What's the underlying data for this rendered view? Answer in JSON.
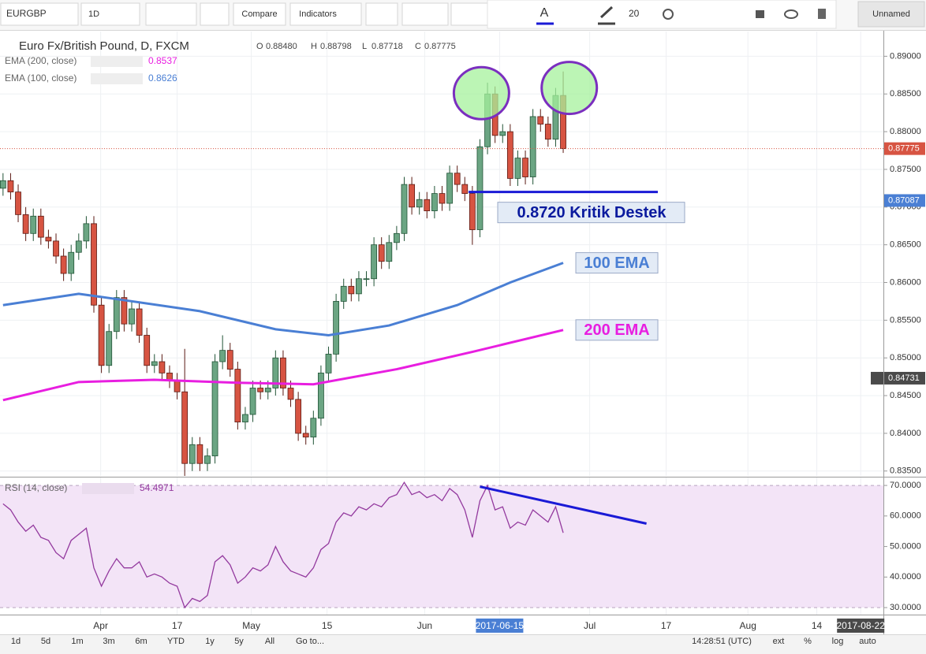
{
  "toolbar": {
    "symbol": "EURGBP",
    "interval": "1D",
    "compare": "Compare",
    "indicators": "Indicators",
    "font_size": "20",
    "layout": "Unnamed"
  },
  "legend": {
    "ohlc": [
      {
        "key": "O",
        "value": "0.88480"
      },
      {
        "key": "H",
        "value": "0.88798"
      },
      {
        "key": "L",
        "value": "0.87718"
      },
      {
        "key": "C",
        "value": "0.87775"
      }
    ]
  },
  "chart_data": [
    {
      "type": "candlestick",
      "title": "Euro Fx/British Pound, D, FXCM",
      "up_color": "#6ba583",
      "down_color": "#d75442",
      "grid": true,
      "xlim": [
        -0.4,
        116.3
      ],
      "ylim": [
        0.83435,
        0.89328
      ],
      "yticks": [
        {
          "value": 0.835,
          "label": "0.83500"
        },
        {
          "value": 0.84,
          "label": "0.84000"
        },
        {
          "value": 0.845,
          "label": "0.84500"
        },
        {
          "value": 0.85,
          "label": "0.85000"
        },
        {
          "value": 0.855,
          "label": "0.85500"
        },
        {
          "value": 0.86,
          "label": "0.86000"
        },
        {
          "value": 0.865,
          "label": "0.86500"
        },
        {
          "value": 0.87,
          "label": "0.87000"
        },
        {
          "value": 0.875,
          "label": "0.87500"
        },
        {
          "value": 0.88,
          "label": "0.88000"
        },
        {
          "value": 0.885,
          "label": "0.88500"
        },
        {
          "value": 0.89,
          "label": "0.89000"
        }
      ],
      "open": [
        0.8725,
        0.8735,
        0.872,
        0.869,
        0.8665,
        0.8688,
        0.866,
        0.8655,
        0.8635,
        0.8612,
        0.864,
        0.8655,
        0.8678,
        0.857,
        0.849,
        0.8535,
        0.858,
        0.8545,
        0.8565,
        0.853,
        0.849,
        0.8495,
        0.848,
        0.847,
        0.8455,
        0.836,
        0.8385,
        0.836,
        0.837,
        0.8495,
        0.851,
        0.8485,
        0.8415,
        0.8425,
        0.846,
        0.8455,
        0.846,
        0.85,
        0.846,
        0.8445,
        0.84,
        0.8395,
        0.842,
        0.848,
        0.8505,
        0.8575,
        0.8595,
        0.8585,
        0.8605,
        0.8605,
        0.865,
        0.8628,
        0.8653,
        0.8665,
        0.873,
        0.87,
        0.871,
        0.8695,
        0.8718,
        0.8705,
        0.8745,
        0.873,
        0.8718,
        0.867,
        0.878,
        0.885,
        0.8795,
        0.88,
        0.8738,
        0.8765,
        0.874,
        0.882,
        0.881,
        0.879,
        0.8848
      ],
      "high": [
        0.8745,
        0.8745,
        0.873,
        0.87,
        0.8698,
        0.8698,
        0.867,
        0.8665,
        0.8645,
        0.865,
        0.8665,
        0.8688,
        0.8688,
        0.858,
        0.8545,
        0.859,
        0.859,
        0.8575,
        0.8575,
        0.854,
        0.8505,
        0.8505,
        0.849,
        0.848,
        0.8512,
        0.8395,
        0.8395,
        0.838,
        0.8505,
        0.853,
        0.852,
        0.8495,
        0.8435,
        0.847,
        0.847,
        0.847,
        0.851,
        0.851,
        0.847,
        0.8455,
        0.841,
        0.843,
        0.849,
        0.8515,
        0.8585,
        0.8605,
        0.8605,
        0.8615,
        0.8615,
        0.866,
        0.866,
        0.8663,
        0.8675,
        0.874,
        0.874,
        0.872,
        0.872,
        0.8728,
        0.8728,
        0.8755,
        0.8755,
        0.874,
        0.8728,
        0.879,
        0.8865,
        0.886,
        0.881,
        0.881,
        0.8775,
        0.8775,
        0.883,
        0.883,
        0.882,
        0.8858,
        0.88798
      ],
      "low": [
        0.8715,
        0.871,
        0.868,
        0.8655,
        0.8655,
        0.865,
        0.8645,
        0.8625,
        0.8602,
        0.8602,
        0.863,
        0.8645,
        0.856,
        0.848,
        0.848,
        0.8525,
        0.8535,
        0.8535,
        0.852,
        0.848,
        0.848,
        0.847,
        0.846,
        0.8445,
        0.8335,
        0.835,
        0.835,
        0.835,
        0.836,
        0.8485,
        0.8475,
        0.8405,
        0.8405,
        0.8415,
        0.8445,
        0.8445,
        0.845,
        0.845,
        0.8435,
        0.839,
        0.8385,
        0.8385,
        0.841,
        0.847,
        0.8495,
        0.8565,
        0.8575,
        0.8575,
        0.8595,
        0.8595,
        0.8618,
        0.8618,
        0.8643,
        0.8655,
        0.869,
        0.869,
        0.8685,
        0.8685,
        0.8695,
        0.8695,
        0.872,
        0.8708,
        0.865,
        0.866,
        0.877,
        0.8785,
        0.8785,
        0.8728,
        0.8728,
        0.873,
        0.873,
        0.88,
        0.878,
        0.878,
        0.87718
      ],
      "close": [
        0.8735,
        0.872,
        0.869,
        0.8665,
        0.8688,
        0.866,
        0.8655,
        0.8635,
        0.8612,
        0.864,
        0.8655,
        0.8678,
        0.857,
        0.849,
        0.8535,
        0.858,
        0.8545,
        0.8565,
        0.853,
        0.849,
        0.8495,
        0.848,
        0.847,
        0.8455,
        0.836,
        0.8385,
        0.836,
        0.837,
        0.8495,
        0.851,
        0.8485,
        0.8415,
        0.8425,
        0.846,
        0.8455,
        0.846,
        0.85,
        0.846,
        0.8445,
        0.84,
        0.8395,
        0.842,
        0.848,
        0.8505,
        0.8575,
        0.8595,
        0.8585,
        0.8605,
        0.8605,
        0.865,
        0.8628,
        0.8653,
        0.8665,
        0.873,
        0.87,
        0.871,
        0.8695,
        0.8718,
        0.8705,
        0.8745,
        0.873,
        0.8718,
        0.867,
        0.878,
        0.885,
        0.8795,
        0.88,
        0.8738,
        0.8765,
        0.874,
        0.882,
        0.881,
        0.879,
        0.8848,
        0.87775
      ],
      "overlays": [
        {
          "name": "200 EMA",
          "legend": "EMA (200, close)",
          "legend_value": "0.8537",
          "color": "#e81ee0",
          "x": [
            0,
            10,
            20,
            31,
            41,
            52,
            62,
            74
          ],
          "values": [
            0.8444,
            0.8468,
            0.8471,
            0.8467,
            0.8465,
            0.8485,
            0.8508,
            0.8537
          ]
        },
        {
          "name": "100 EMA",
          "legend": "EMA (100, close)",
          "legend_value": "0.8626",
          "color": "#4a7fd4",
          "x": [
            0,
            10,
            15,
            26,
            36,
            43,
            51,
            60,
            67,
            74
          ],
          "values": [
            0.857,
            0.8585,
            0.8578,
            0.8562,
            0.8538,
            0.853,
            0.8543,
            0.857,
            0.86,
            0.8626
          ]
        }
      ],
      "support": {
        "label": "0.8720 Kritik Destek",
        "value": 0.872,
        "x": [
          61.5,
          86.5
        ],
        "color": "#1a1ad6"
      },
      "highlights": [
        {
          "x": 63.2,
          "y": 0.8851
        },
        {
          "x": 74.8,
          "y": 0.8858
        }
      ],
      "price_labels": [
        {
          "value": 0.87775,
          "label": "0.87775",
          "color": "#d75442",
          "line": true
        },
        {
          "value": 0.87087,
          "label": "0.87087",
          "color": "#4a7fd4"
        },
        {
          "value": 0.84731,
          "label": "0.84731",
          "color": "#4a4a4a"
        }
      ]
    },
    {
      "type": "line",
      "name": "RSI (14, close)",
      "value_label": "54.4971",
      "color": "#93399e",
      "xlim": [
        -0.4,
        116.3
      ],
      "ylim": [
        27.7,
        72.6
      ],
      "yticks": [
        {
          "value": 30,
          "label": "30.0000"
        },
        {
          "value": 40,
          "label": "40.0000"
        },
        {
          "value": 50,
          "label": "50.0000"
        },
        {
          "value": 60,
          "label": "60.0000"
        },
        {
          "value": 70,
          "label": "70.0000"
        }
      ],
      "band": [
        30,
        70
      ],
      "band_color": "#f3e4f7",
      "values": [
        64,
        62,
        58,
        55,
        57,
        53,
        52,
        48,
        46,
        52,
        54,
        56,
        43,
        37,
        42,
        46,
        43,
        43,
        45,
        40,
        41,
        40,
        38,
        37,
        30,
        33,
        32,
        34,
        45,
        47,
        44,
        38,
        40,
        43,
        42,
        44,
        50,
        45,
        42,
        41,
        40,
        43,
        49,
        51,
        58,
        61,
        60,
        63,
        62,
        64,
        63,
        66,
        67,
        71,
        67,
        68,
        66,
        67,
        65,
        69,
        67,
        62,
        53,
        65,
        70,
        62,
        63,
        56,
        58,
        57,
        62,
        60,
        58,
        63,
        54.4971
      ],
      "trendline": {
        "x": [
          63,
          85
        ],
        "values": [
          69.6,
          57.5
        ],
        "color": "#1a1ad6"
      },
      "xticks": [
        {
          "value": 12.9,
          "label": "Apr"
        },
        {
          "value": 23.0,
          "label": "17"
        },
        {
          "value": 32.8,
          "label": "May"
        },
        {
          "value": 42.8,
          "label": "15"
        },
        {
          "value": 55.7,
          "label": "Jun"
        },
        {
          "value": 65.6,
          "label": "2017-06-15",
          "badge": "#4a7fd4"
        },
        {
          "value": 77.5,
          "label": "Jul"
        },
        {
          "value": 87.6,
          "label": "17"
        },
        {
          "value": 98.4,
          "label": "Aug"
        },
        {
          "value": 107.5,
          "label": "14"
        },
        {
          "value": 113.3,
          "label": "2017-08-22",
          "badge": "#4a4a4a"
        }
      ]
    }
  ],
  "bottom_bar": {
    "ranges": [
      "1d",
      "5d",
      "1m",
      "3m",
      "6m",
      "YTD",
      "1y",
      "5y",
      "All",
      "Go to..."
    ],
    "clock": "14:28:51 (UTC)",
    "options": [
      "ext",
      "%",
      "log",
      "auto"
    ]
  }
}
